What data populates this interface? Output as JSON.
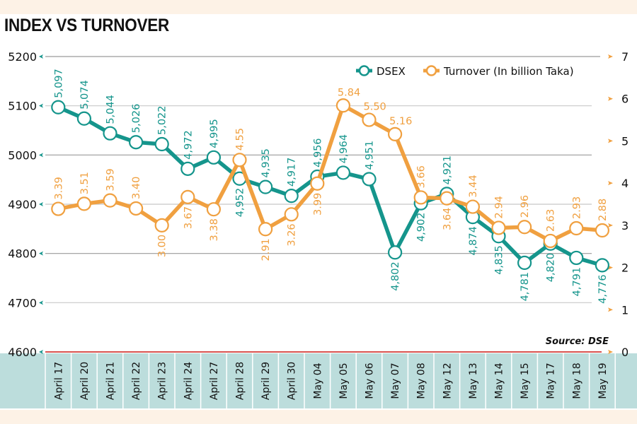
{
  "colors": {
    "dsex": "#15958c",
    "turnover": "#f0a040",
    "gridline": "#9a9a9a",
    "baseline": "#d9534f",
    "category_band": "#bcdddc",
    "page_band": "#fdf2e6"
  },
  "chart_data": {
    "type": "line",
    "title": "INDEX VS TURNOVER",
    "source": "Source: DSE",
    "categories": [
      "April 17",
      "April 20",
      "April 21",
      "April 22",
      "April 23",
      "April 24",
      "April 27",
      "April 28",
      "April 29",
      "April 30",
      "May 04",
      "May 05",
      "May 06",
      "May 07",
      "May 08",
      "May 12",
      "May 13",
      "May 14",
      "May 15",
      "May 17",
      "May 18",
      "May 19"
    ],
    "left_axis": {
      "ylim": [
        4600,
        5200
      ],
      "ticks": [
        "5200",
        "5100",
        "5000",
        "4900",
        "4800",
        "4700",
        "4600"
      ],
      "tick_values": [
        5200,
        5100,
        5000,
        4900,
        4800,
        4700,
        4600
      ]
    },
    "right_axis": {
      "ylim": [
        0,
        7
      ],
      "ticks": [
        "7",
        "6",
        "5",
        "4",
        "3",
        "2",
        "1",
        "0"
      ],
      "tick_values": [
        7,
        6,
        5,
        4,
        3,
        2,
        1,
        0
      ]
    },
    "grid": true,
    "legend_position": "top-right",
    "series": [
      {
        "name": "DSEX",
        "axis": "left",
        "values": [
          5097,
          5074,
          5044,
          5026,
          5022,
          4972,
          4995,
          4952,
          4935,
          4917,
          4956,
          4964,
          4951,
          4802,
          4902,
          4921,
          4874,
          4835,
          4781,
          4820,
          4791,
          4776
        ],
        "labels": [
          "5,097",
          "5,074",
          "5,044",
          "5,026",
          "5,022",
          "4,972",
          "4,995",
          "4,952",
          "4,935",
          "4,917",
          "4,956",
          "4,964",
          "4,951",
          "4,802",
          "4,902",
          "4,921",
          "4,874",
          "4,835",
          "4,781",
          "4,820",
          "4,791",
          "4,776"
        ]
      },
      {
        "name": "Turnover (In billion Taka)",
        "axis": "right",
        "values": [
          3.39,
          3.51,
          3.59,
          3.4,
          3.0,
          3.67,
          3.38,
          4.55,
          2.91,
          3.26,
          3.99,
          5.84,
          5.5,
          5.16,
          3.66,
          3.64,
          3.44,
          2.94,
          2.96,
          2.63,
          2.93,
          2.88
        ],
        "labels": [
          "3.39",
          "3.51",
          "3.59",
          "3.40",
          "3.00",
          "3.67",
          "3.38",
          "4.55",
          "2.91",
          "3.26",
          "3.99",
          "5.84",
          "5.50",
          "5.16",
          "3.66",
          "3.64",
          "3.44",
          "2.94",
          "2.96",
          "2.63",
          "2.93",
          "2.88"
        ]
      }
    ]
  }
}
